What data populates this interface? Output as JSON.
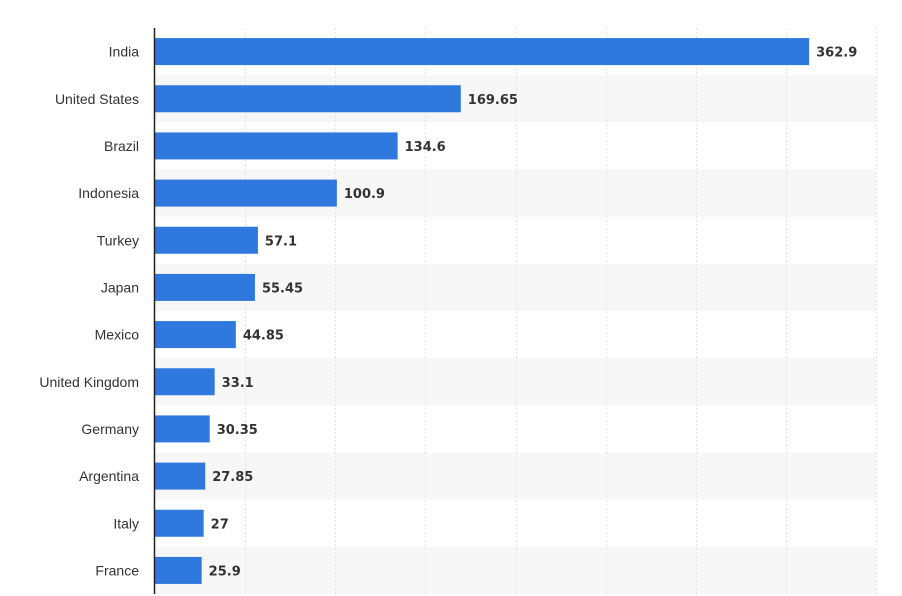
{
  "chart_data": {
    "type": "bar",
    "orientation": "horizontal",
    "title": "",
    "xlabel": "",
    "ylabel": "",
    "categories": [
      "India",
      "United States",
      "Brazil",
      "Indonesia",
      "Turkey",
      "Japan",
      "Mexico",
      "United Kingdom",
      "Germany",
      "Argentina",
      "Italy",
      "France"
    ],
    "values": [
      362.9,
      169.65,
      134.6,
      100.9,
      57.1,
      55.45,
      44.85,
      33.1,
      30.35,
      27.85,
      27,
      25.9
    ],
    "value_labels": [
      "362.9",
      "169.65",
      "134.6",
      "100.9",
      "57.1",
      "55.45",
      "44.85",
      "33.1",
      "30.35",
      "27.85",
      "27",
      "25.9"
    ],
    "xlim": [
      0,
      400
    ],
    "grid": true,
    "legend": "none",
    "bar_color": "#2f78de"
  }
}
